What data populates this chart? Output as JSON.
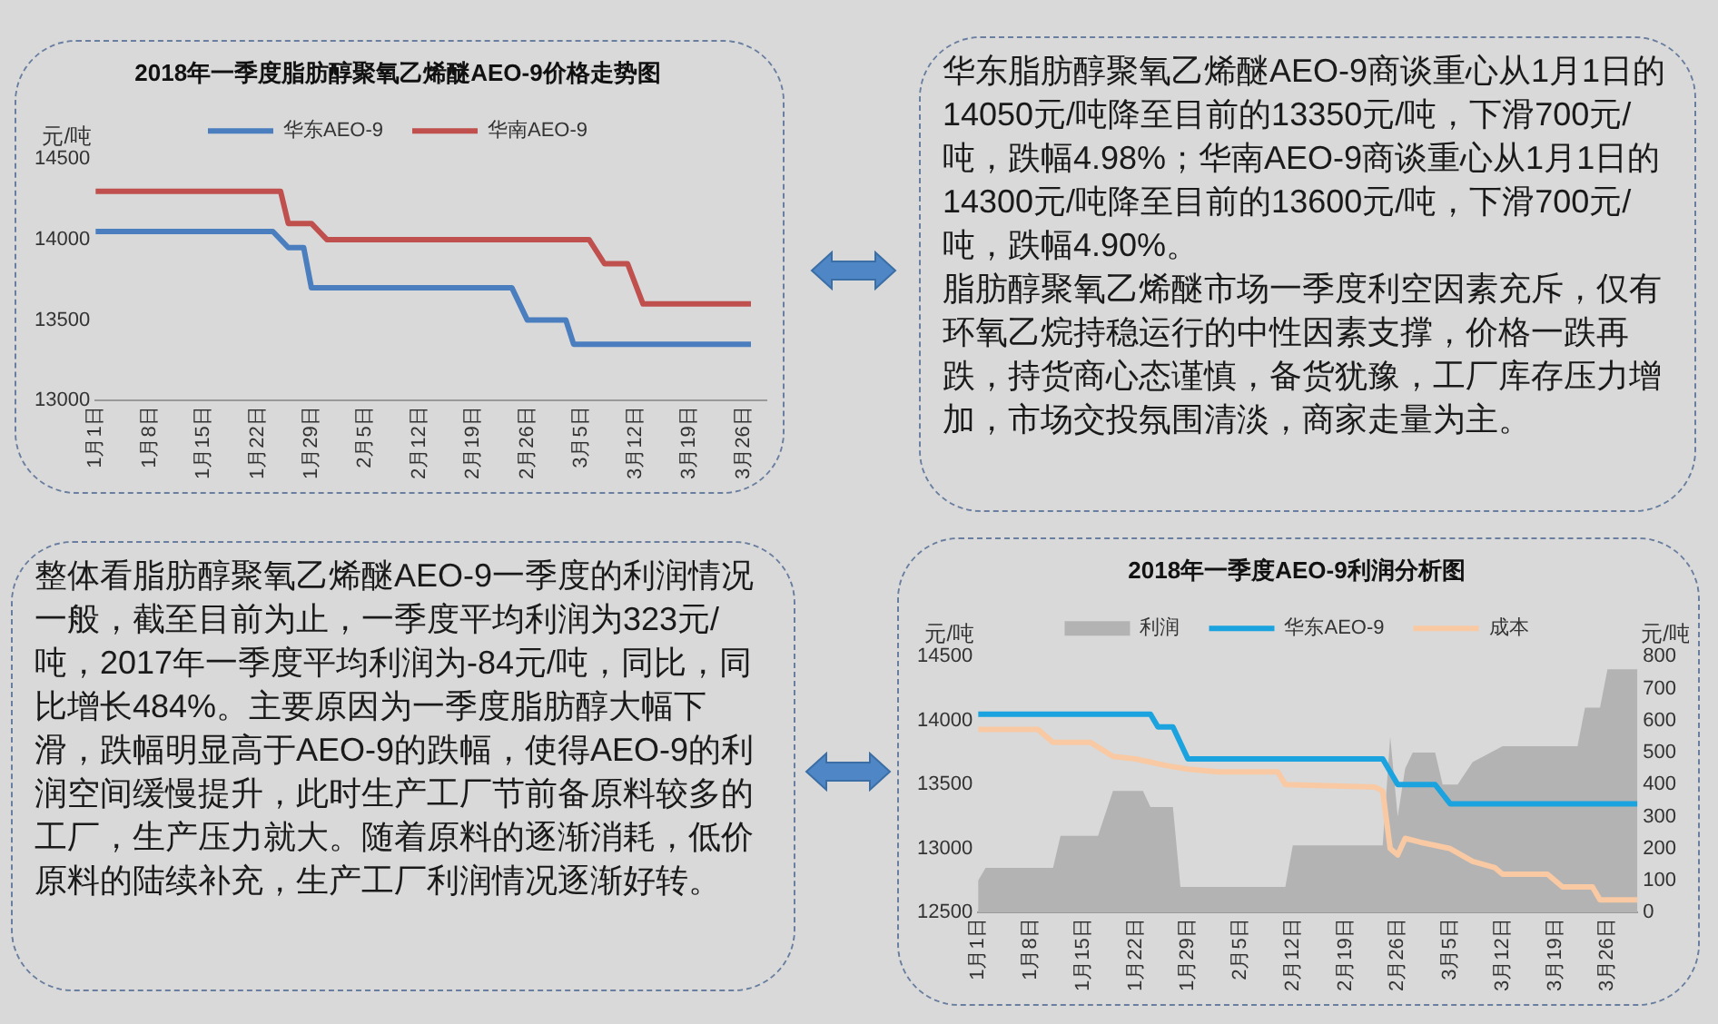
{
  "chart_data": [
    {
      "type": "line",
      "title": "2018年一季度脂肪醇聚氧乙烯醚AEO-9价格走势图",
      "ylabel": "元/吨",
      "legend": "top",
      "xlim": [
        "--01-01",
        "--03-29"
      ],
      "xticks": [
        {
          "value": "--01-01",
          "label": "1月1日"
        },
        {
          "value": "--01-08",
          "label": "1月8日"
        },
        {
          "value": "--01-15",
          "label": "1月15日"
        },
        {
          "value": "--01-22",
          "label": "1月22日"
        },
        {
          "value": "--01-29",
          "label": "1月29日"
        },
        {
          "value": "--02-05",
          "label": "2月5日"
        },
        {
          "value": "--02-12",
          "label": "2月12日"
        },
        {
          "value": "--02-19",
          "label": "2月19日"
        },
        {
          "value": "--02-26",
          "label": "2月26日"
        },
        {
          "value": "--03-05",
          "label": "3月5日"
        },
        {
          "value": "--03-12",
          "label": "3月12日"
        },
        {
          "value": "--03-19",
          "label": "3月19日"
        },
        {
          "value": "--03-26",
          "label": "3月26日"
        }
      ],
      "ylim": [
        13000,
        14500
      ],
      "yticks": [
        13000,
        13500,
        14000,
        14500
      ],
      "series": [
        {
          "name": "华东AEO-9",
          "color": "#4a7ebf",
          "x": [
            "--01-01",
            "--01-24",
            "--01-26",
            "--01-28",
            "--01-29",
            "--02-24",
            "--02-26",
            "--03-03",
            "--03-04",
            "--03-27"
          ],
          "values": [
            14050,
            14050,
            13950,
            13950,
            13700,
            13700,
            13500,
            13500,
            13350,
            13350
          ]
        },
        {
          "name": "华南AEO-9",
          "color": "#c0504d",
          "x": [
            "--01-01",
            "--01-25",
            "--01-26",
            "--01-29",
            "--01-31",
            "--03-06",
            "--03-08",
            "--03-11",
            "--03-13",
            "--03-27"
          ],
          "values": [
            14300,
            14300,
            14100,
            14100,
            14000,
            14000,
            13850,
            13850,
            13600,
            13600
          ]
        }
      ]
    },
    {
      "type": "other",
      "annotations": [
        "华东脂肪醇聚氧乙烯醚AEO-9商谈重心从1月1日的14050元/吨降至目前的13350元/吨，下滑700元/吨，跌幅4.98%；华南AEO-9商谈重心从1月1日的14300元/吨降至目前的13600元/吨，下滑700元/吨，跌幅4.90%。",
        "脂肪醇聚氧乙烯醚市场一季度利空因素充斥，仅有环氧乙烷持稳运行的中性因素支撑，价格一跌再跌，持货商心态谨慎，备货犹豫，工厂库存压力增加，市场交投氛围清淡，商家走量为主。"
      ]
    },
    {
      "type": "other",
      "annotations": [
        "整体看脂肪醇聚氧乙烯醚AEO-9一季度的利润情况一般，截至目前为止，一季度平均利润为323元/吨，2017年一季度平均利润为-84元/吨，同比，同比增长484%。主要原因为一季度脂肪醇大幅下滑，跌幅明显高于AEO-9的跌幅，使得AEO-9的利润空间缓慢提升，此时生产工厂节前备原料较多的工厂，生产压力就大。随着原料的逐渐消耗，低价原料的陆续补充，生产工厂利润情况逐渐好转。"
      ]
    },
    {
      "type": "line",
      "title": "2018年一季度AEO-9利润分析图",
      "ylabel": "元/吨",
      "y2label": "元/吨",
      "legend": "top",
      "xlim": [
        "--01-01",
        "--03-30"
      ],
      "xticks": [
        {
          "value": "--01-01",
          "label": "1月1日"
        },
        {
          "value": "--01-08",
          "label": "1月8日"
        },
        {
          "value": "--01-15",
          "label": "1月15日"
        },
        {
          "value": "--01-22",
          "label": "1月22日"
        },
        {
          "value": "--01-29",
          "label": "1月29日"
        },
        {
          "value": "--02-05",
          "label": "2月5日"
        },
        {
          "value": "--02-12",
          "label": "2月12日"
        },
        {
          "value": "--02-19",
          "label": "2月19日"
        },
        {
          "value": "--02-26",
          "label": "2月26日"
        },
        {
          "value": "--03-05",
          "label": "3月5日"
        },
        {
          "value": "--03-12",
          "label": "3月12日"
        },
        {
          "value": "--03-19",
          "label": "3月19日"
        },
        {
          "value": "--03-26",
          "label": "3月26日"
        }
      ],
      "ylim": [
        12500,
        14500
      ],
      "yticks": [
        12500,
        13000,
        13500,
        14000,
        14500
      ],
      "y2lim": [
        0,
        800
      ],
      "y2ticks": [
        0,
        100,
        200,
        300,
        400,
        500,
        600,
        700,
        800
      ],
      "series": [
        {
          "name": "利润",
          "type": "area",
          "axis": "y2",
          "color": "#b3b3b3",
          "x": [
            "--01-01",
            "--01-02",
            "--01-11",
            "--01-12",
            "--01-17",
            "--01-19",
            "--01-23",
            "--01-24",
            "--01-27",
            "--01-28",
            "--02-11",
            "--02-12",
            "--02-24",
            "--02-25",
            "--02-26",
            "--02-27",
            "--02-28",
            "--03-03",
            "--03-04",
            "--03-06",
            "--03-08",
            "--03-12",
            "--03-22",
            "--03-23",
            "--03-25",
            "--03-26",
            "--03-30"
          ],
          "values": [
            100,
            140,
            140,
            240,
            240,
            380,
            380,
            330,
            330,
            80,
            80,
            210,
            210,
            550,
            300,
            450,
            500,
            500,
            400,
            400,
            470,
            520,
            520,
            640,
            640,
            760,
            760
          ]
        },
        {
          "name": "华东AEO-9",
          "color": "#1aa3de",
          "x": [
            "--01-01",
            "--01-24",
            "--01-25",
            "--01-27",
            "--01-29",
            "--02-24",
            "--02-26",
            "--03-03",
            "--03-05",
            "--03-30"
          ],
          "values": [
            14050,
            14050,
            13950,
            13950,
            13700,
            13700,
            13500,
            13500,
            13350,
            13350
          ]
        },
        {
          "name": "成本",
          "color": "#f8c9a3",
          "x": [
            "--01-01",
            "--01-09",
            "--01-11",
            "--01-16",
            "--01-19",
            "--01-22",
            "--01-26",
            "--01-29",
            "--02-02",
            "--02-10",
            "--02-11",
            "--02-23",
            "--02-24",
            "--02-25",
            "--02-26",
            "--02-27",
            "--03-01",
            "--03-05",
            "--03-08",
            "--03-11",
            "--03-12",
            "--03-18",
            "--03-20",
            "--03-24",
            "--03-25",
            "--03-30"
          ],
          "values": [
            13930,
            13930,
            13830,
            13830,
            13720,
            13700,
            13650,
            13620,
            13600,
            13600,
            13500,
            13480,
            13450,
            13000,
            12950,
            13080,
            13050,
            13000,
            12900,
            12850,
            12800,
            12800,
            12700,
            12700,
            12600,
            12600
          ]
        }
      ]
    }
  ]
}
